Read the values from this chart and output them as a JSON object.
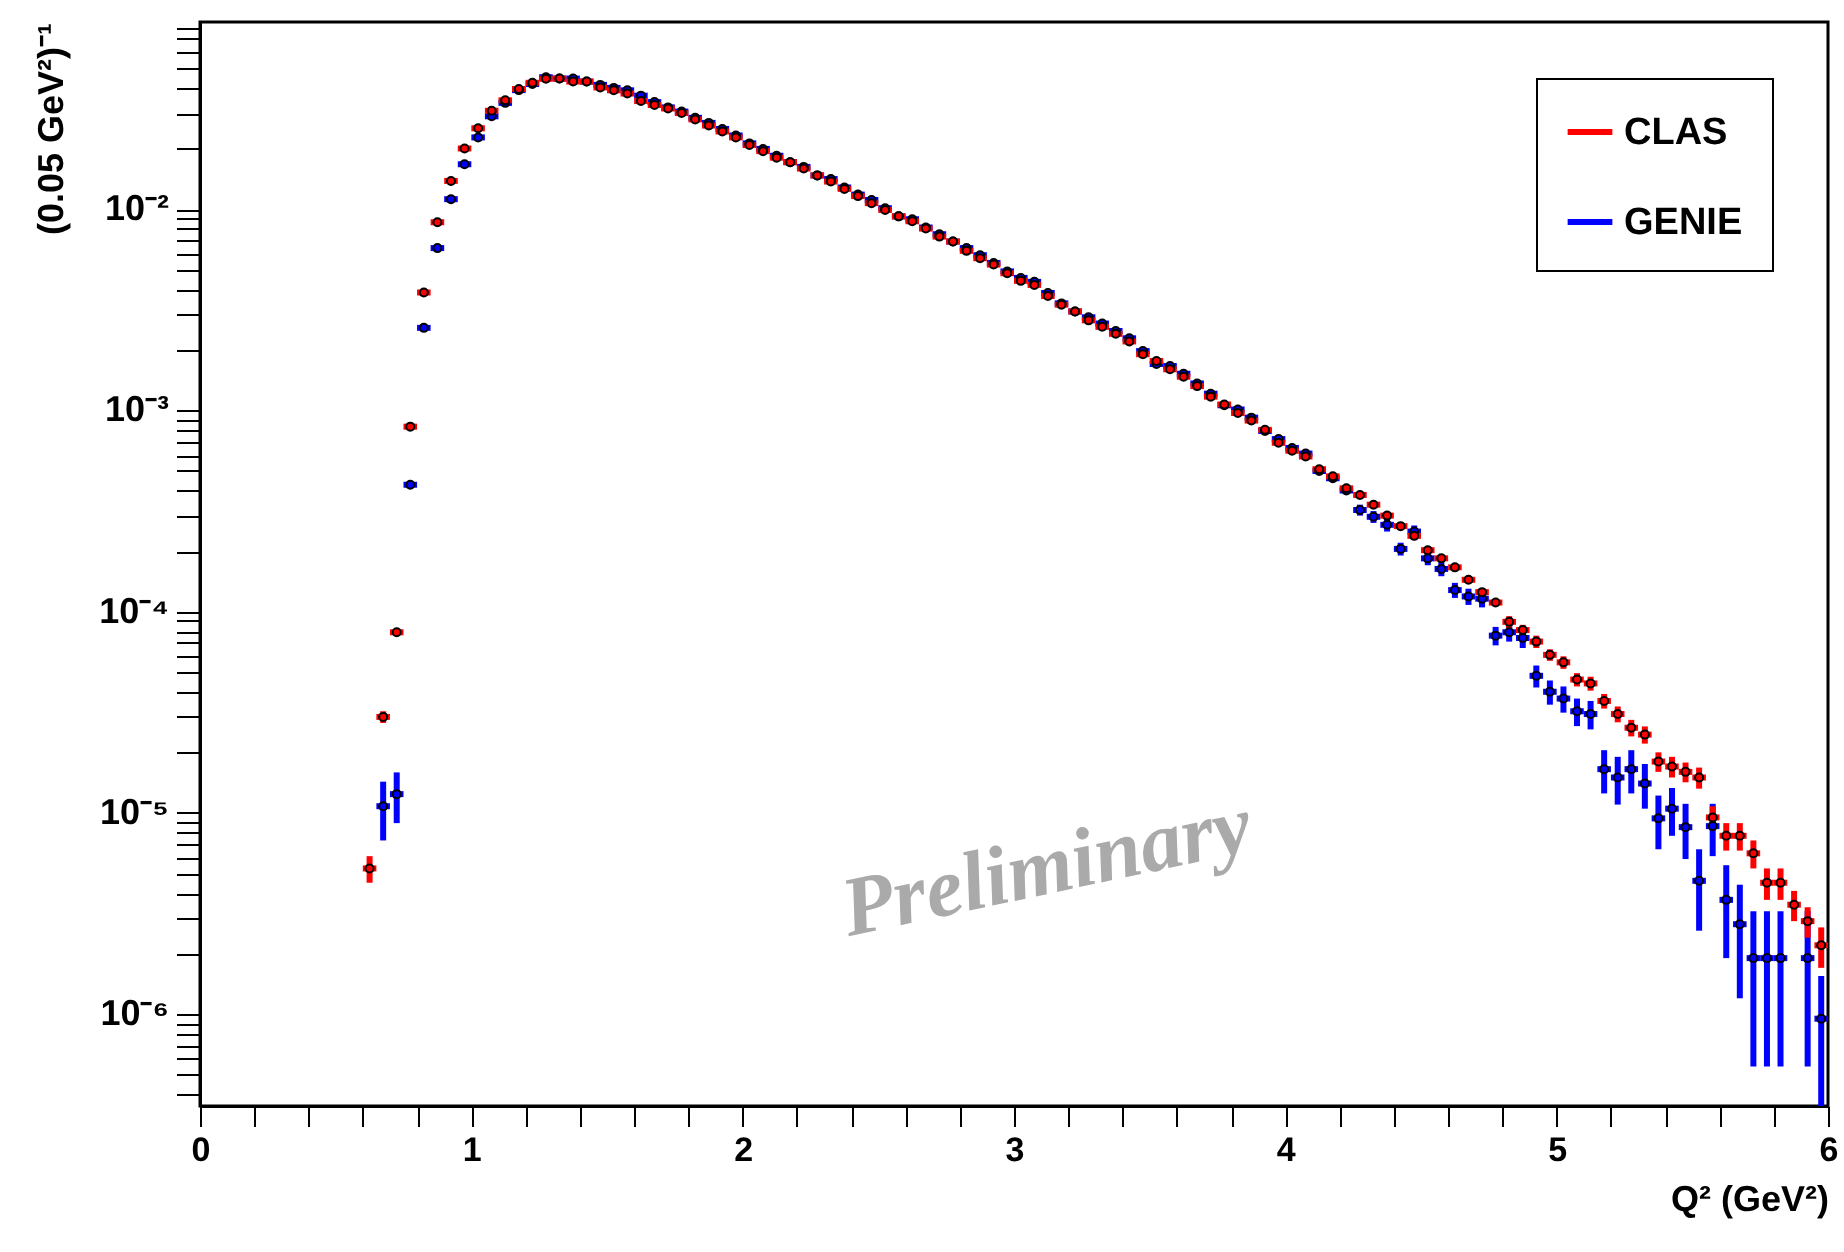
{
  "chart_data": {
    "type": "scatter",
    "xlabel": "Q² (GeV²)",
    "ylabel": "(0.05 GeV²)⁻¹",
    "log": "y",
    "legend": "top right",
    "marker": "circle",
    "annotations": [
      "Preliminary"
    ],
    "xlim": [
      0,
      6
    ],
    "xticks": [
      0,
      {
        "value": 0.2,
        "label": null
      },
      {
        "value": 0.4,
        "label": null
      },
      {
        "value": 0.6,
        "label": null
      },
      {
        "value": 0.8,
        "label": null
      },
      1,
      {
        "value": 1.2,
        "label": null
      },
      {
        "value": 1.4,
        "label": null
      },
      {
        "value": 1.6,
        "label": null
      },
      {
        "value": 1.8,
        "label": null
      },
      2,
      {
        "value": 2.2,
        "label": null
      },
      {
        "value": 2.4,
        "label": null
      },
      {
        "value": 2.6,
        "label": null
      },
      {
        "value": 2.8,
        "label": null
      },
      3,
      {
        "value": 3.2,
        "label": null
      },
      {
        "value": 3.4,
        "label": null
      },
      {
        "value": 3.6,
        "label": null
      },
      {
        "value": 3.8,
        "label": null
      },
      4,
      {
        "value": 4.2,
        "label": null
      },
      {
        "value": 4.4,
        "label": null
      },
      {
        "value": 4.6,
        "label": null
      },
      {
        "value": 4.8,
        "label": null
      },
      5,
      {
        "value": 5.2,
        "label": null
      },
      {
        "value": 5.4,
        "label": null
      },
      {
        "value": 5.6,
        "label": null
      },
      {
        "value": 5.8,
        "label": null
      },
      6
    ],
    "ylim": [
      3.5e-07,
      0.085
    ],
    "yticks": [
      {
        "value": 4e-07,
        "label": null
      },
      {
        "value": 5e-07,
        "label": null
      },
      {
        "value": 6e-07,
        "label": null
      },
      {
        "value": 7e-07,
        "label": null
      },
      {
        "value": 8e-07,
        "label": null
      },
      {
        "value": 9e-07,
        "label": null
      },
      {
        "value": 1e-06,
        "label": "10⁻⁶"
      },
      {
        "value": 2e-06,
        "label": null
      },
      {
        "value": 3e-06,
        "label": null
      },
      {
        "value": 4e-06,
        "label": null
      },
      {
        "value": 5e-06,
        "label": null
      },
      {
        "value": 6e-06,
        "label": null
      },
      {
        "value": 7e-06,
        "label": null
      },
      {
        "value": 8e-06,
        "label": null
      },
      {
        "value": 9e-06,
        "label": null
      },
      {
        "value": 1e-05,
        "label": "10⁻⁵"
      },
      {
        "value": 2e-05,
        "label": null
      },
      {
        "value": 3e-05,
        "label": null
      },
      {
        "value": 4e-05,
        "label": null
      },
      {
        "value": 5e-05,
        "label": null
      },
      {
        "value": 6e-05,
        "label": null
      },
      {
        "value": 7e-05,
        "label": null
      },
      {
        "value": 8e-05,
        "label": null
      },
      {
        "value": 9e-05,
        "label": null
      },
      {
        "value": 0.0001,
        "label": "10⁻⁴"
      },
      {
        "value": 0.0002,
        "label": null
      },
      {
        "value": 0.0003,
        "label": null
      },
      {
        "value": 0.0004,
        "label": null
      },
      {
        "value": 0.0005,
        "label": null
      },
      {
        "value": 0.0006,
        "label": null
      },
      {
        "value": 0.0007,
        "label": null
      },
      {
        "value": 0.0008,
        "label": null
      },
      {
        "value": 0.0009,
        "label": null
      },
      {
        "value": 0.001,
        "label": "10⁻³"
      },
      {
        "value": 0.002,
        "label": null
      },
      {
        "value": 0.003,
        "label": null
      },
      {
        "value": 0.004,
        "label": null
      },
      {
        "value": 0.005,
        "label": null
      },
      {
        "value": 0.006,
        "label": null
      },
      {
        "value": 0.007,
        "label": null
      },
      {
        "value": 0.008,
        "label": null
      },
      {
        "value": 0.009,
        "label": null
      },
      {
        "value": 0.01,
        "label": "10⁻²"
      },
      {
        "value": 0.02,
        "label": null
      },
      {
        "value": 0.03,
        "label": null
      },
      {
        "value": 0.04,
        "label": null
      },
      {
        "value": 0.05,
        "label": null
      },
      {
        "value": 0.06,
        "label": null
      },
      {
        "value": 0.07,
        "label": null
      },
      {
        "value": 0.08,
        "label": null
      }
    ],
    "series": [
      {
        "name": "CLAS",
        "color": "#ff0000",
        "x": [
          0.625,
          0.675,
          0.725,
          0.775,
          0.825,
          0.875,
          0.925,
          0.975,
          1.025,
          1.075,
          1.125,
          1.175,
          1.225,
          1.275,
          1.325,
          1.375,
          1.425,
          1.475,
          1.525,
          1.575,
          1.625,
          1.675,
          1.725,
          1.775,
          1.825,
          1.875,
          1.925,
          1.975,
          2.025,
          2.075,
          2.125,
          2.175,
          2.225,
          2.275,
          2.325,
          2.375,
          2.425,
          2.475,
          2.525,
          2.575,
          2.625,
          2.675,
          2.725,
          2.775,
          2.825,
          2.875,
          2.925,
          2.975,
          3.025,
          3.075,
          3.125,
          3.175,
          3.225,
          3.275,
          3.325,
          3.375,
          3.425,
          3.475,
          3.525,
          3.575,
          3.625,
          3.675,
          3.725,
          3.775,
          3.825,
          3.875,
          3.925,
          3.975,
          4.025,
          4.075,
          4.125,
          4.175,
          4.225,
          4.275,
          4.325,
          4.375,
          4.425,
          4.475,
          4.525,
          4.575,
          4.625,
          4.675,
          4.725,
          4.775,
          4.825,
          4.875,
          4.925,
          4.975,
          5.025,
          5.075,
          5.125,
          5.175,
          5.225,
          5.275,
          5.325,
          5.375,
          5.425,
          5.475,
          5.525,
          5.575,
          5.625,
          5.675,
          5.725,
          5.775,
          5.825,
          5.875,
          5.925,
          5.975
        ],
        "values": [
          5.3e-06,
          3e-05,
          7.9e-05,
          0.00083,
          0.00385,
          0.0086,
          0.0138,
          0.02,
          0.0252,
          0.0308,
          0.0347,
          0.0395,
          0.0424,
          0.0444,
          0.0445,
          0.043,
          0.043,
          0.0402,
          0.0389,
          0.0375,
          0.0344,
          0.0329,
          0.0316,
          0.03,
          0.0279,
          0.026,
          0.0243,
          0.0227,
          0.0208,
          0.0194,
          0.018,
          0.0171,
          0.0159,
          0.0147,
          0.0137,
          0.0126,
          0.0116,
          0.0107,
          0.0099,
          0.0092,
          0.0087,
          0.008,
          0.0073,
          0.0069,
          0.0062,
          0.0057,
          0.0053,
          0.0048,
          0.0044,
          0.0042,
          0.0037,
          0.00335,
          0.0031,
          0.0028,
          0.0026,
          0.0024,
          0.0022,
          0.0019,
          0.00176,
          0.0016,
          0.00147,
          0.00132,
          0.00117,
          0.00107,
          0.00097,
          0.00089,
          0.0008,
          0.00069,
          0.00063,
          0.00059,
          0.00051,
          0.00047,
          0.00041,
          0.00038,
          0.00034,
          0.0003,
          0.000266,
          0.000238,
          0.000202,
          0.000184,
          0.000166,
          0.000144,
          0.000125,
          0.000111,
          8.9e-05,
          8.1e-05,
          7.1e-05,
          6.1e-05,
          5.6e-05,
          4.6e-05,
          4.4e-05,
          3.6e-05,
          3.1e-05,
          2.65e-05,
          2.45e-05,
          1.8e-05,
          1.7e-05,
          1.6e-05,
          1.5e-05,
          9.5e-06,
          7.7e-06,
          7.7e-06,
          6.3e-06,
          4.5e-06,
          4.5e-06,
          3.5e-06,
          2.9e-06,
          2.2e-06
        ],
        "errors": [
          8e-07,
          2e-06,
          null,
          null,
          null,
          null,
          null,
          null,
          null,
          null,
          null,
          null,
          null,
          null,
          null,
          null,
          null,
          null,
          null,
          null,
          null,
          null,
          null,
          null,
          null,
          null,
          null,
          null,
          null,
          null,
          null,
          null,
          null,
          null,
          null,
          null,
          null,
          null,
          null,
          null,
          null,
          null,
          null,
          null,
          null,
          null,
          null,
          null,
          null,
          null,
          null,
          null,
          null,
          null,
          null,
          null,
          null,
          null,
          null,
          null,
          null,
          null,
          null,
          null,
          null,
          null,
          null,
          null,
          null,
          null,
          null,
          null,
          null,
          null,
          null,
          null,
          null,
          null,
          null,
          null,
          null,
          null,
          null,
          null,
          6e-06,
          5e-06,
          5e-06,
          4e-06,
          4e-06,
          3.5e-06,
          3.5e-06,
          3e-06,
          2.8e-06,
          2.5e-06,
          2.4e-06,
          2e-06,
          2e-06,
          1.8e-06,
          1.8e-06,
          1.3e-06,
          1.2e-06,
          1.2e-06,
          1e-06,
          8e-07,
          8e-07,
          6e-07,
          5e-07,
          5e-07
        ],
        "xerrors": [
          0.025,
          0.025,
          0.025,
          0.025,
          0.025,
          0.025,
          0.025,
          0.025,
          0.025,
          0.025,
          0.025,
          0.025,
          0.025,
          0.025,
          0.025,
          0.025,
          0.025,
          0.025,
          0.025,
          0.025,
          0.025,
          0.025,
          0.025,
          0.025,
          0.025,
          0.025,
          0.025,
          0.025,
          0.025,
          0.025,
          0.025,
          0.025,
          0.025,
          0.025,
          0.025,
          0.025,
          0.025,
          0.025,
          0.025,
          0.025,
          0.025,
          0.025,
          0.025,
          0.025,
          0.025,
          0.025,
          0.025,
          0.025,
          0.025,
          0.025,
          0.025,
          0.025,
          0.025,
          0.025,
          0.025,
          0.025,
          0.025,
          0.025,
          0.025,
          0.025,
          0.025,
          0.025,
          0.025,
          0.025,
          0.025,
          0.025,
          0.025,
          0.025,
          0.025,
          0.025,
          0.025,
          0.025,
          0.025,
          0.025,
          0.025,
          0.025,
          0.025,
          0.025,
          0.025,
          0.025,
          0.025,
          0.025,
          0.025,
          0.025,
          0.025,
          0.025,
          0.025,
          0.025,
          0.025,
          0.025,
          0.025,
          0.025,
          0.025,
          0.025,
          0.025,
          0.025,
          0.025,
          0.025,
          0.025,
          0.025,
          0.025,
          0.025,
          0.025,
          0.025,
          0.025,
          0.025,
          0.025,
          0.025
        ]
      },
      {
        "name": "GENIE",
        "color": "#0000ff",
        "x": [
          0.675,
          0.725,
          0.775,
          0.825,
          0.875,
          0.925,
          0.975,
          1.025,
          1.075,
          1.125,
          1.175,
          1.225,
          1.275,
          1.325,
          1.375,
          1.425,
          1.475,
          1.525,
          1.575,
          1.625,
          1.675,
          1.725,
          1.775,
          1.825,
          1.875,
          1.925,
          1.975,
          2.025,
          2.075,
          2.125,
          2.175,
          2.225,
          2.275,
          2.325,
          2.375,
          2.425,
          2.475,
          2.525,
          2.575,
          2.625,
          2.675,
          2.725,
          2.775,
          2.825,
          2.875,
          2.925,
          2.975,
          3.025,
          3.075,
          3.125,
          3.175,
          3.225,
          3.275,
          3.325,
          3.375,
          3.425,
          3.475,
          3.525,
          3.575,
          3.625,
          3.675,
          3.725,
          3.775,
          3.825,
          3.875,
          3.925,
          3.975,
          4.025,
          4.075,
          4.125,
          4.175,
          4.225,
          4.275,
          4.325,
          4.375,
          4.425,
          4.475,
          4.525,
          4.575,
          4.625,
          4.675,
          4.725,
          4.775,
          4.825,
          4.875,
          4.925,
          4.975,
          5.025,
          5.075,
          5.125,
          5.175,
          5.225,
          5.275,
          5.325,
          5.375,
          5.425,
          5.475,
          5.525,
          5.575,
          5.625,
          5.675,
          5.725,
          5.775,
          5.825,
          5.925,
          5.975
        ],
        "values": [
          1.08e-05,
          1.24e-05,
          0.000427,
          0.00257,
          0.0064,
          0.0112,
          0.0167,
          0.0227,
          0.0289,
          0.0337,
          0.039,
          0.0418,
          0.0452,
          0.0445,
          0.0445,
          0.043,
          0.0414,
          0.04,
          0.0389,
          0.0366,
          0.034,
          0.032,
          0.0305,
          0.0284,
          0.0268,
          0.025,
          0.0232,
          0.0212,
          0.0199,
          0.0184,
          0.0171,
          0.0162,
          0.0147,
          0.0141,
          0.0128,
          0.0118,
          0.0111,
          0.0101,
          0.0092,
          0.0089,
          0.0081,
          0.0075,
          0.0069,
          0.0064,
          0.0059,
          0.0054,
          0.0049,
          0.00455,
          0.00435,
          0.00383,
          0.0034,
          0.0031,
          0.0029,
          0.0027,
          0.00248,
          0.00228,
          0.00197,
          0.0017,
          0.00166,
          0.00152,
          0.00136,
          0.00121,
          0.00106,
          0.00101,
          0.00092,
          0.00079,
          0.00072,
          0.00065,
          0.00061,
          0.0005,
          0.00046,
          0.0004,
          0.00032,
          0.000296,
          0.00027,
          0.000205,
          0.00025,
          0.000184,
          0.000163,
          0.000128,
          0.000119,
          0.000116,
          7.6e-05,
          7.9e-05,
          7.4e-05,
          4.8e-05,
          4e-05,
          3.7e-05,
          3.2e-05,
          3.1e-05,
          1.65e-05,
          1.5e-05,
          1.65e-05,
          1.4e-05,
          9.4e-06,
          1.05e-05,
          8.5e-06,
          4.6e-06,
          8.6e-06,
          3.7e-06,
          2.8e-06,
          1.9e-06,
          1.9e-06,
          1.9e-06,
          1.9e-06,
          9.5e-07
        ],
        "errors": [
          3.5e-06,
          3.5e-06,
          null,
          null,
          null,
          null,
          null,
          null,
          null,
          null,
          null,
          null,
          null,
          null,
          null,
          null,
          null,
          null,
          null,
          null,
          null,
          null,
          null,
          null,
          null,
          null,
          null,
          null,
          null,
          null,
          null,
          null,
          null,
          null,
          null,
          null,
          null,
          null,
          null,
          null,
          null,
          null,
          null,
          null,
          null,
          null,
          null,
          null,
          null,
          null,
          null,
          null,
          null,
          null,
          null,
          null,
          null,
          null,
          null,
          null,
          null,
          null,
          null,
          null,
          null,
          null,
          null,
          null,
          null,
          null,
          null,
          null,
          2e-05,
          2e-05,
          2e-05,
          1.5e-05,
          1.8e-05,
          1.4e-05,
          1.3e-05,
          1.1e-05,
          1.1e-05,
          1.1e-05,
          8e-06,
          8e-06,
          8e-06,
          6e-06,
          5.5e-06,
          5.5e-06,
          5e-06,
          5e-06,
          4e-06,
          4e-06,
          4e-06,
          3.5e-06,
          2.8e-06,
          2.8e-06,
          2.6e-06,
          2e-06,
          2.5e-06,
          1.8e-06,
          1.6e-06,
          1.35e-06,
          1.35e-06,
          1.35e-06,
          1.35e-06,
          6e-07
        ],
        "xerrors": [
          0.025,
          0.025,
          0.025,
          0.025,
          0.025,
          0.025,
          0.025,
          0.025,
          0.025,
          0.025,
          0.025,
          0.025,
          0.025,
          0.025,
          0.025,
          0.025,
          0.025,
          0.025,
          0.025,
          0.025,
          0.025,
          0.025,
          0.025,
          0.025,
          0.025,
          0.025,
          0.025,
          0.025,
          0.025,
          0.025,
          0.025,
          0.025,
          0.025,
          0.025,
          0.025,
          0.025,
          0.025,
          0.025,
          0.025,
          0.025,
          0.025,
          0.025,
          0.025,
          0.025,
          0.025,
          0.025,
          0.025,
          0.025,
          0.025,
          0.025,
          0.025,
          0.025,
          0.025,
          0.025,
          0.025,
          0.025,
          0.025,
          0.025,
          0.025,
          0.025,
          0.025,
          0.025,
          0.025,
          0.025,
          0.025,
          0.025,
          0.025,
          0.025,
          0.025,
          0.025,
          0.025,
          0.025,
          0.025,
          0.025,
          0.025,
          0.025,
          0.025,
          0.025,
          0.025,
          0.025,
          0.025,
          0.025,
          0.025,
          0.025,
          0.025,
          0.025,
          0.025,
          0.025,
          0.025,
          0.025,
          0.025,
          0.025,
          0.025,
          0.025,
          0.025,
          0.025,
          0.025,
          0.025,
          0.025,
          0.025,
          0.025,
          0.025,
          0.025,
          0.025,
          0.025,
          0.025
        ]
      }
    ]
  }
}
